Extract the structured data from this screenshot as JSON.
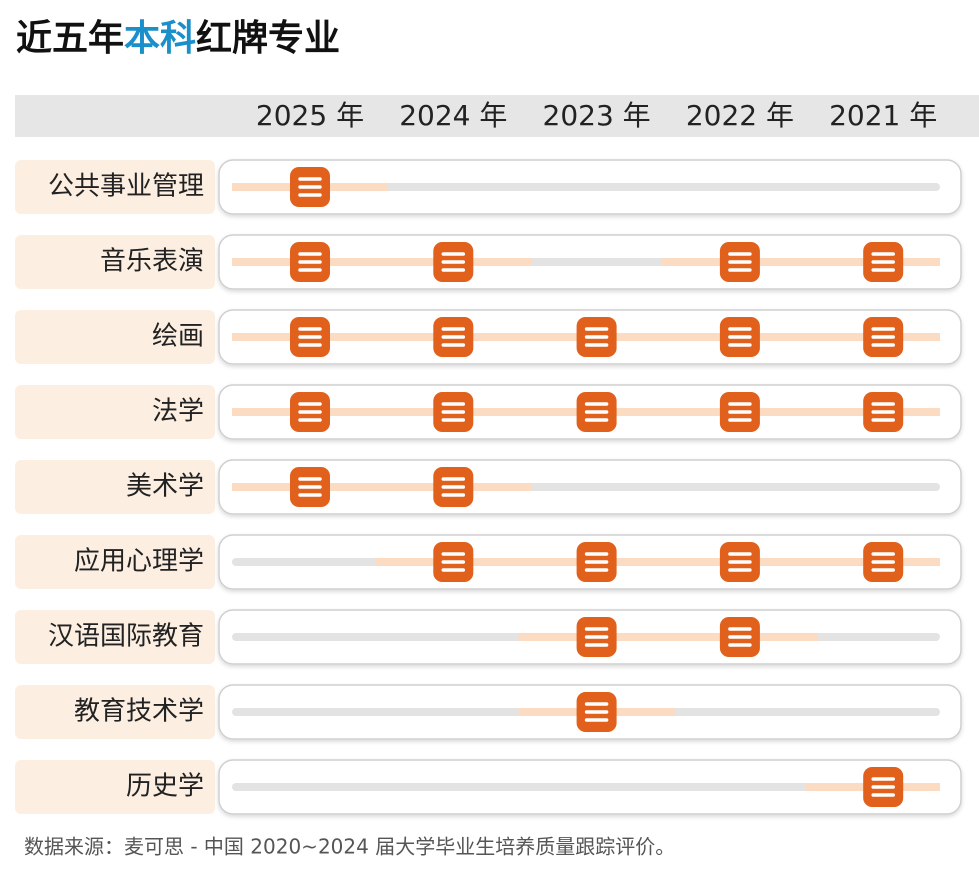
{
  "title": {
    "part1": "近五年",
    "part2": "本科",
    "part3": "红牌专业"
  },
  "years": [
    "2025 年",
    "2024 年",
    "2023 年",
    "2022 年",
    "2021 年"
  ],
  "rows": [
    {
      "label": "公共事业管理",
      "marks": [
        true,
        false,
        false,
        false,
        false
      ]
    },
    {
      "label": "音乐表演",
      "marks": [
        true,
        true,
        false,
        true,
        true
      ]
    },
    {
      "label": "绘画",
      "marks": [
        true,
        true,
        true,
        true,
        true
      ]
    },
    {
      "label": "法学",
      "marks": [
        true,
        true,
        true,
        true,
        true
      ]
    },
    {
      "label": "美术学",
      "marks": [
        true,
        true,
        false,
        false,
        false
      ]
    },
    {
      "label": "应用心理学",
      "marks": [
        false,
        true,
        true,
        true,
        true
      ]
    },
    {
      "label": "汉语国际教育",
      "marks": [
        false,
        false,
        true,
        true,
        false
      ]
    },
    {
      "label": "教育技术学",
      "marks": [
        false,
        false,
        true,
        false,
        false
      ]
    },
    {
      "label": "历史学",
      "marks": [
        false,
        false,
        false,
        false,
        true
      ]
    }
  ],
  "source": "数据来源：麦可思 - 中国 2020~2024 届大学毕业生培养质量跟踪评价。"
}
